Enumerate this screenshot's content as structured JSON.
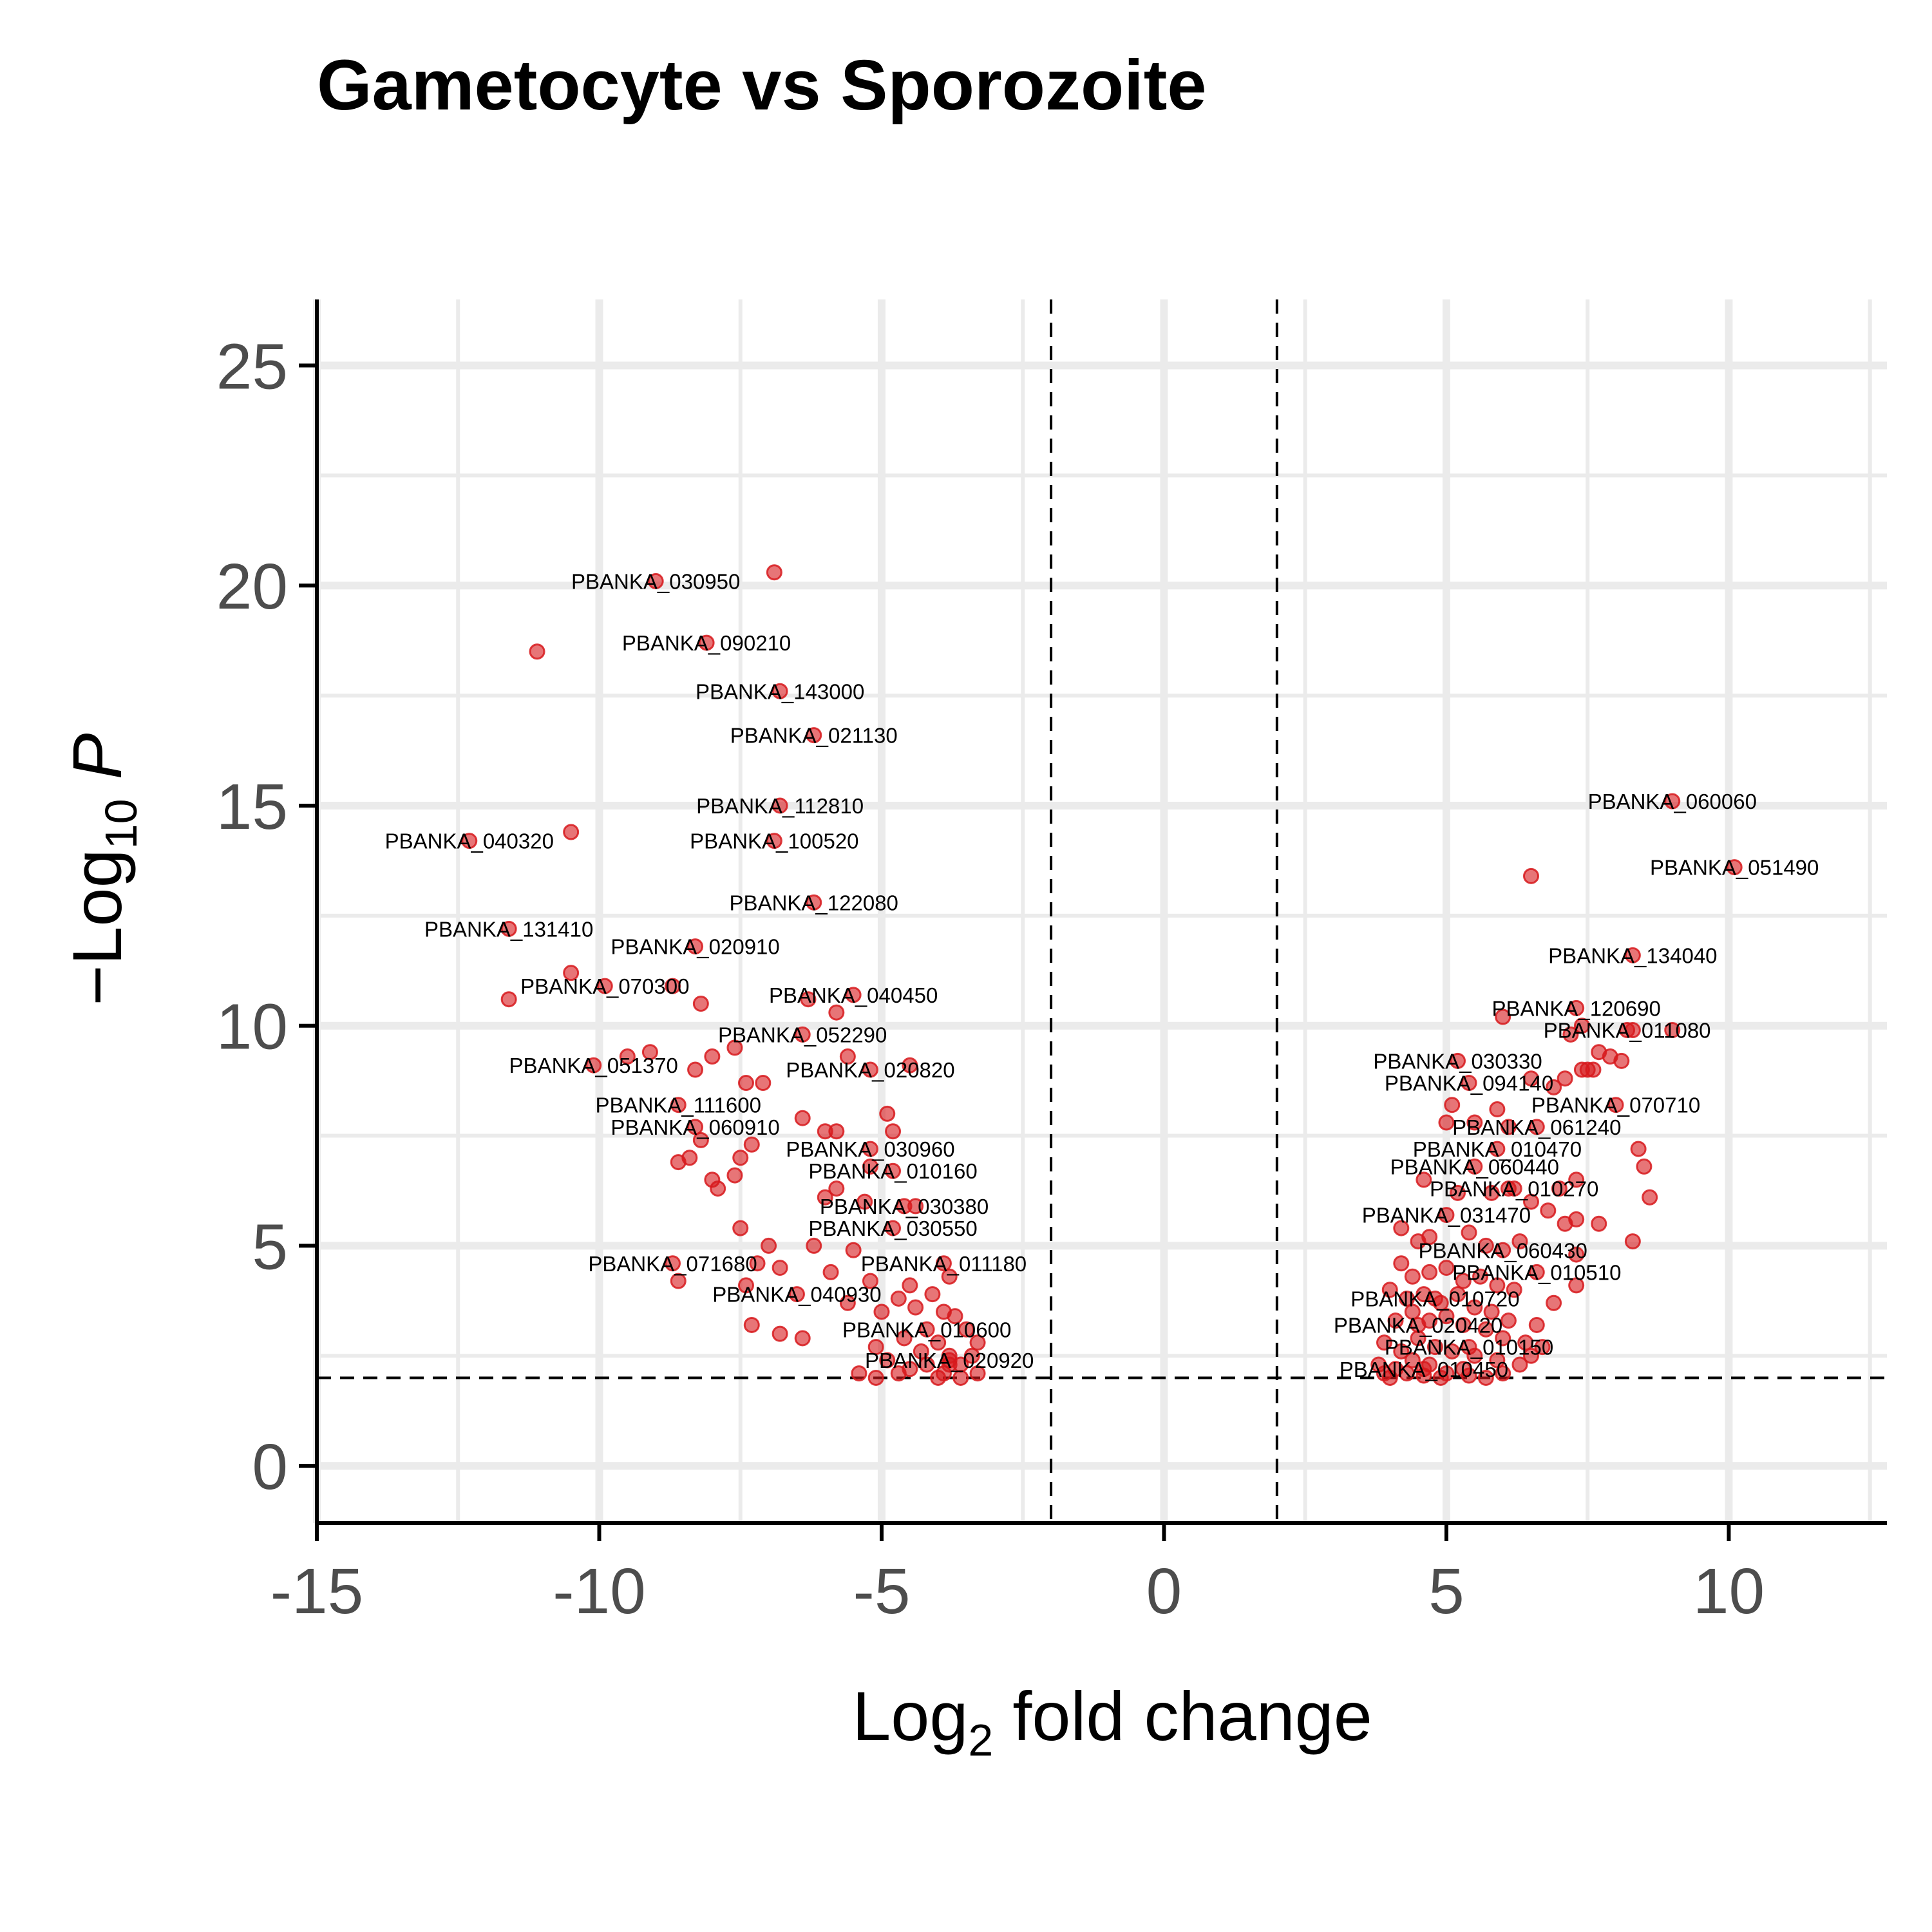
{
  "chart_data": {
    "type": "scatter",
    "title": "Gametocyte vs Sporozoite",
    "xlabel": "Log2 fold change",
    "ylabel": "−Log10 P",
    "xlabel_parts": {
      "main": "Log",
      "sub": "2",
      "rest": " fold change"
    },
    "ylabel_parts": {
      "prefix": "−Log",
      "sub": "10",
      "italic": "P"
    },
    "xlim": [
      -15,
      12.8
    ],
    "ylim": [
      -1.3,
      26.5
    ],
    "x_ticks": [
      -15,
      -10,
      -5,
      0,
      5,
      10
    ],
    "x_tick_labels": [
      "-15",
      "-10",
      "-5",
      "0",
      "5",
      "10"
    ],
    "y_ticks": [
      0,
      5,
      10,
      15,
      20,
      25
    ],
    "y_tick_labels": [
      "0",
      "5",
      "10",
      "15",
      "20",
      "25"
    ],
    "grid": true,
    "thresholds": {
      "fc_cutoff": [
        -2,
        2
      ],
      "p_cutoff": 2
    },
    "colors": {
      "point": "#d7191c",
      "grid": "#ebebeb",
      "axis": "#000000"
    },
    "labeled_points": [
      {
        "label": "PBANKA_030950",
        "x": -9.0,
        "y": 20.1
      },
      {
        "label": "PBANKA_090210",
        "x": -8.1,
        "y": 18.7
      },
      {
        "label": "PBANKA_143000",
        "x": -6.8,
        "y": 17.6
      },
      {
        "label": "PBANKA_021130",
        "x": -6.2,
        "y": 16.6
      },
      {
        "label": "PBANKA_112810",
        "x": -6.8,
        "y": 15.0
      },
      {
        "label": "PBANKA_040320",
        "x": -12.3,
        "y": 14.2
      },
      {
        "label": "PBANKA_100520",
        "x": -6.9,
        "y": 14.2
      },
      {
        "label": "PBANKA_122080",
        "x": -6.2,
        "y": 12.8
      },
      {
        "label": "PBANKA_131410",
        "x": -11.6,
        "y": 12.2
      },
      {
        "label": "PBANKA_020910",
        "x": -8.3,
        "y": 11.8
      },
      {
        "label": "PBANKA_070300",
        "x": -9.9,
        "y": 10.9
      },
      {
        "label": "PBANKA_040450",
        "x": -5.5,
        "y": 10.7
      },
      {
        "label": "PBANKA_052290",
        "x": -6.4,
        "y": 9.8
      },
      {
        "label": "PBANKA_051370",
        "x": -10.1,
        "y": 9.1
      },
      {
        "label": "PBANKA_020820",
        "x": -5.2,
        "y": 9.0
      },
      {
        "label": "PBANKA_111600",
        "x": -8.6,
        "y": 8.2
      },
      {
        "label": "PBANKA_060910",
        "x": -8.3,
        "y": 7.7
      },
      {
        "label": "PBANKA_030960",
        "x": -5.2,
        "y": 7.2
      },
      {
        "label": "PBANKA_010160",
        "x": -4.8,
        "y": 6.7
      },
      {
        "label": "PBANKA_030380",
        "x": -4.6,
        "y": 5.9
      },
      {
        "label": "PBANKA_030550",
        "x": -4.8,
        "y": 5.4
      },
      {
        "label": "PBANKA_071680",
        "x": -8.7,
        "y": 4.6
      },
      {
        "label": "PBANKA_011180",
        "x": -3.9,
        "y": 4.6
      },
      {
        "label": "PBANKA_040930",
        "x": -6.5,
        "y": 3.9
      },
      {
        "label": "PBANKA_010600",
        "x": -4.2,
        "y": 3.1
      },
      {
        "label": "PBANKA_020920",
        "x": -3.8,
        "y": 2.4
      },
      {
        "label": "PBANKA_060060",
        "x": 9.0,
        "y": 15.1
      },
      {
        "label": "PBANKA_051490",
        "x": 10.1,
        "y": 13.6
      },
      {
        "label": "PBANKA_134040",
        "x": 8.3,
        "y": 11.6
      },
      {
        "label": "PBANKA_120690",
        "x": 7.3,
        "y": 10.4
      },
      {
        "label": "PBANKA_011080",
        "x": 8.2,
        "y": 9.9
      },
      {
        "label": "PBANKA_030330",
        "x": 5.2,
        "y": 9.2
      },
      {
        "label": "PBANKA_094140",
        "x": 5.4,
        "y": 8.7
      },
      {
        "label": "PBANKA_070710",
        "x": 8.0,
        "y": 8.2
      },
      {
        "label": "PBANKA_061240",
        "x": 6.6,
        "y": 7.7
      },
      {
        "label": "PBANKA_010470",
        "x": 5.9,
        "y": 7.2
      },
      {
        "label": "PBANKA_060440",
        "x": 5.5,
        "y": 6.8
      },
      {
        "label": "PBANKA_010270",
        "x": 6.2,
        "y": 6.3
      },
      {
        "label": "PBANKA_031470",
        "x": 5.0,
        "y": 5.7
      },
      {
        "label": "PBANKA_060430",
        "x": 6.0,
        "y": 4.9
      },
      {
        "label": "PBANKA_010510",
        "x": 6.6,
        "y": 4.4
      },
      {
        "label": "PBANKA_010720",
        "x": 4.8,
        "y": 3.8
      },
      {
        "label": "PBANKA_020420",
        "x": 4.5,
        "y": 3.2
      },
      {
        "label": "PBANKA_010150",
        "x": 5.4,
        "y": 2.7
      },
      {
        "label": "PBANKA_010450",
        "x": 4.6,
        "y": 2.2
      }
    ],
    "extra_points": [
      {
        "x": -6.9,
        "y": 20.3
      },
      {
        "x": -11.1,
        "y": 18.5
      },
      {
        "x": -10.5,
        "y": 14.4
      },
      {
        "x": -11.6,
        "y": 10.6
      },
      {
        "x": -10.5,
        "y": 11.2
      },
      {
        "x": -8.7,
        "y": 10.9
      },
      {
        "x": -8.2,
        "y": 10.5
      },
      {
        "x": -6.3,
        "y": 10.6
      },
      {
        "x": -5.8,
        "y": 10.3
      },
      {
        "x": -7.6,
        "y": 9.5
      },
      {
        "x": -9.5,
        "y": 9.3
      },
      {
        "x": -9.1,
        "y": 9.4
      },
      {
        "x": -8.0,
        "y": 9.3
      },
      {
        "x": -8.3,
        "y": 9.0
      },
      {
        "x": -7.4,
        "y": 8.7
      },
      {
        "x": -7.1,
        "y": 8.7
      },
      {
        "x": -5.6,
        "y": 9.3
      },
      {
        "x": -4.5,
        "y": 9.1
      },
      {
        "x": -4.9,
        "y": 8.0
      },
      {
        "x": -6.4,
        "y": 7.9
      },
      {
        "x": -6.0,
        "y": 7.6
      },
      {
        "x": -5.8,
        "y": 7.6
      },
      {
        "x": -4.8,
        "y": 7.6
      },
      {
        "x": -8.4,
        "y": 7.0
      },
      {
        "x": -8.2,
        "y": 7.4
      },
      {
        "x": -7.3,
        "y": 7.3
      },
      {
        "x": -7.5,
        "y": 7.0
      },
      {
        "x": -8.6,
        "y": 6.9
      },
      {
        "x": -7.6,
        "y": 6.6
      },
      {
        "x": -8.0,
        "y": 6.5
      },
      {
        "x": -7.9,
        "y": 6.3
      },
      {
        "x": -5.2,
        "y": 6.8
      },
      {
        "x": -5.8,
        "y": 6.3
      },
      {
        "x": -6.0,
        "y": 6.1
      },
      {
        "x": -4.4,
        "y": 5.9
      },
      {
        "x": -5.3,
        "y": 6.0
      },
      {
        "x": -7.5,
        "y": 5.4
      },
      {
        "x": -7.0,
        "y": 5.0
      },
      {
        "x": -6.2,
        "y": 5.0
      },
      {
        "x": -5.5,
        "y": 4.9
      },
      {
        "x": -7.2,
        "y": 4.6
      },
      {
        "x": -6.8,
        "y": 4.5
      },
      {
        "x": -5.9,
        "y": 4.4
      },
      {
        "x": -5.2,
        "y": 4.2
      },
      {
        "x": -4.5,
        "y": 4.1
      },
      {
        "x": -3.8,
        "y": 4.3
      },
      {
        "x": -7.4,
        "y": 4.1
      },
      {
        "x": -8.6,
        "y": 4.2
      },
      {
        "x": -7.3,
        "y": 3.2
      },
      {
        "x": -6.8,
        "y": 3.0
      },
      {
        "x": -6.4,
        "y": 2.9
      },
      {
        "x": -5.6,
        "y": 3.7
      },
      {
        "x": -5.0,
        "y": 3.5
      },
      {
        "x": -4.7,
        "y": 3.8
      },
      {
        "x": -4.4,
        "y": 3.6
      },
      {
        "x": -4.1,
        "y": 3.9
      },
      {
        "x": -3.9,
        "y": 3.5
      },
      {
        "x": -3.7,
        "y": 3.4
      },
      {
        "x": -3.5,
        "y": 3.1
      },
      {
        "x": -3.3,
        "y": 2.8
      },
      {
        "x": -5.1,
        "y": 2.7
      },
      {
        "x": -4.6,
        "y": 2.9
      },
      {
        "x": -4.3,
        "y": 2.6
      },
      {
        "x": -4.0,
        "y": 2.8
      },
      {
        "x": -3.8,
        "y": 2.5
      },
      {
        "x": -3.6,
        "y": 2.3
      },
      {
        "x": -3.4,
        "y": 2.5
      },
      {
        "x": -4.9,
        "y": 2.4
      },
      {
        "x": -4.5,
        "y": 2.2
      },
      {
        "x": -4.2,
        "y": 2.3
      },
      {
        "x": -3.9,
        "y": 2.1
      },
      {
        "x": -3.6,
        "y": 2.0
      },
      {
        "x": -5.4,
        "y": 2.1
      },
      {
        "x": -5.1,
        "y": 2.0
      },
      {
        "x": -4.7,
        "y": 2.1
      },
      {
        "x": -3.3,
        "y": 2.1
      },
      {
        "x": -3.8,
        "y": 2.3
      },
      {
        "x": -4.0,
        "y": 2.0
      },
      {
        "x": 6.5,
        "y": 13.4
      },
      {
        "x": 6.0,
        "y": 10.2
      },
      {
        "x": 7.4,
        "y": 10.0
      },
      {
        "x": 7.2,
        "y": 9.8
      },
      {
        "x": 8.3,
        "y": 9.9
      },
      {
        "x": 9.0,
        "y": 9.9
      },
      {
        "x": 7.7,
        "y": 9.4
      },
      {
        "x": 8.1,
        "y": 9.2
      },
      {
        "x": 7.9,
        "y": 9.3
      },
      {
        "x": 7.5,
        "y": 9.0
      },
      {
        "x": 7.4,
        "y": 9.0
      },
      {
        "x": 7.6,
        "y": 9.0
      },
      {
        "x": 7.1,
        "y": 8.8
      },
      {
        "x": 6.5,
        "y": 8.8
      },
      {
        "x": 6.9,
        "y": 8.6
      },
      {
        "x": 5.9,
        "y": 8.1
      },
      {
        "x": 5.1,
        "y": 8.2
      },
      {
        "x": 5.0,
        "y": 7.8
      },
      {
        "x": 5.5,
        "y": 7.8
      },
      {
        "x": 6.1,
        "y": 7.7
      },
      {
        "x": 8.4,
        "y": 7.2
      },
      {
        "x": 8.5,
        "y": 6.8
      },
      {
        "x": 8.6,
        "y": 6.1
      },
      {
        "x": 7.3,
        "y": 6.5
      },
      {
        "x": 7.0,
        "y": 6.3
      },
      {
        "x": 6.5,
        "y": 6.0
      },
      {
        "x": 6.1,
        "y": 6.3
      },
      {
        "x": 5.8,
        "y": 6.2
      },
      {
        "x": 5.2,
        "y": 6.2
      },
      {
        "x": 4.6,
        "y": 6.5
      },
      {
        "x": 6.8,
        "y": 5.8
      },
      {
        "x": 7.3,
        "y": 5.6
      },
      {
        "x": 7.1,
        "y": 5.5
      },
      {
        "x": 7.7,
        "y": 5.5
      },
      {
        "x": 8.3,
        "y": 5.1
      },
      {
        "x": 4.2,
        "y": 5.4
      },
      {
        "x": 4.5,
        "y": 5.1
      },
      {
        "x": 4.7,
        "y": 5.2
      },
      {
        "x": 5.4,
        "y": 5.3
      },
      {
        "x": 5.7,
        "y": 5.0
      },
      {
        "x": 6.3,
        "y": 5.1
      },
      {
        "x": 7.3,
        "y": 4.8
      },
      {
        "x": 4.2,
        "y": 4.6
      },
      {
        "x": 4.4,
        "y": 4.3
      },
      {
        "x": 4.7,
        "y": 4.4
      },
      {
        "x": 5.0,
        "y": 4.5
      },
      {
        "x": 5.3,
        "y": 4.2
      },
      {
        "x": 5.6,
        "y": 4.3
      },
      {
        "x": 5.9,
        "y": 4.1
      },
      {
        "x": 6.2,
        "y": 4.0
      },
      {
        "x": 7.3,
        "y": 4.1
      },
      {
        "x": 6.9,
        "y": 3.7
      },
      {
        "x": 4.0,
        "y": 4.0
      },
      {
        "x": 4.3,
        "y": 3.8
      },
      {
        "x": 4.6,
        "y": 3.9
      },
      {
        "x": 4.9,
        "y": 3.7
      },
      {
        "x": 5.2,
        "y": 3.9
      },
      {
        "x": 5.5,
        "y": 3.6
      },
      {
        "x": 5.8,
        "y": 3.5
      },
      {
        "x": 6.1,
        "y": 3.3
      },
      {
        "x": 6.6,
        "y": 3.2
      },
      {
        "x": 4.1,
        "y": 3.3
      },
      {
        "x": 4.4,
        "y": 3.5
      },
      {
        "x": 4.7,
        "y": 3.3
      },
      {
        "x": 5.0,
        "y": 3.4
      },
      {
        "x": 5.3,
        "y": 3.2
      },
      {
        "x": 5.7,
        "y": 3.1
      },
      {
        "x": 6.0,
        "y": 2.9
      },
      {
        "x": 6.4,
        "y": 2.8
      },
      {
        "x": 6.7,
        "y": 2.7
      },
      {
        "x": 3.9,
        "y": 2.8
      },
      {
        "x": 4.2,
        "y": 2.6
      },
      {
        "x": 4.5,
        "y": 2.9
      },
      {
        "x": 4.8,
        "y": 2.7
      },
      {
        "x": 5.1,
        "y": 2.6
      },
      {
        "x": 5.5,
        "y": 2.5
      },
      {
        "x": 5.9,
        "y": 2.4
      },
      {
        "x": 6.3,
        "y": 2.3
      },
      {
        "x": 3.8,
        "y": 2.3
      },
      {
        "x": 4.1,
        "y": 2.2
      },
      {
        "x": 4.4,
        "y": 2.4
      },
      {
        "x": 4.7,
        "y": 2.3
      },
      {
        "x": 5.0,
        "y": 2.1
      },
      {
        "x": 5.3,
        "y": 2.2
      },
      {
        "x": 5.7,
        "y": 2.0
      },
      {
        "x": 6.0,
        "y": 2.1
      },
      {
        "x": 4.0,
        "y": 2.0
      },
      {
        "x": 4.3,
        "y": 2.1
      },
      {
        "x": 4.9,
        "y": 2.0
      },
      {
        "x": 3.9,
        "y": 2.1
      },
      {
        "x": 4.6,
        "y": 2.05
      },
      {
        "x": 5.4,
        "y": 2.05
      },
      {
        "x": 6.5,
        "y": 2.5
      }
    ]
  }
}
